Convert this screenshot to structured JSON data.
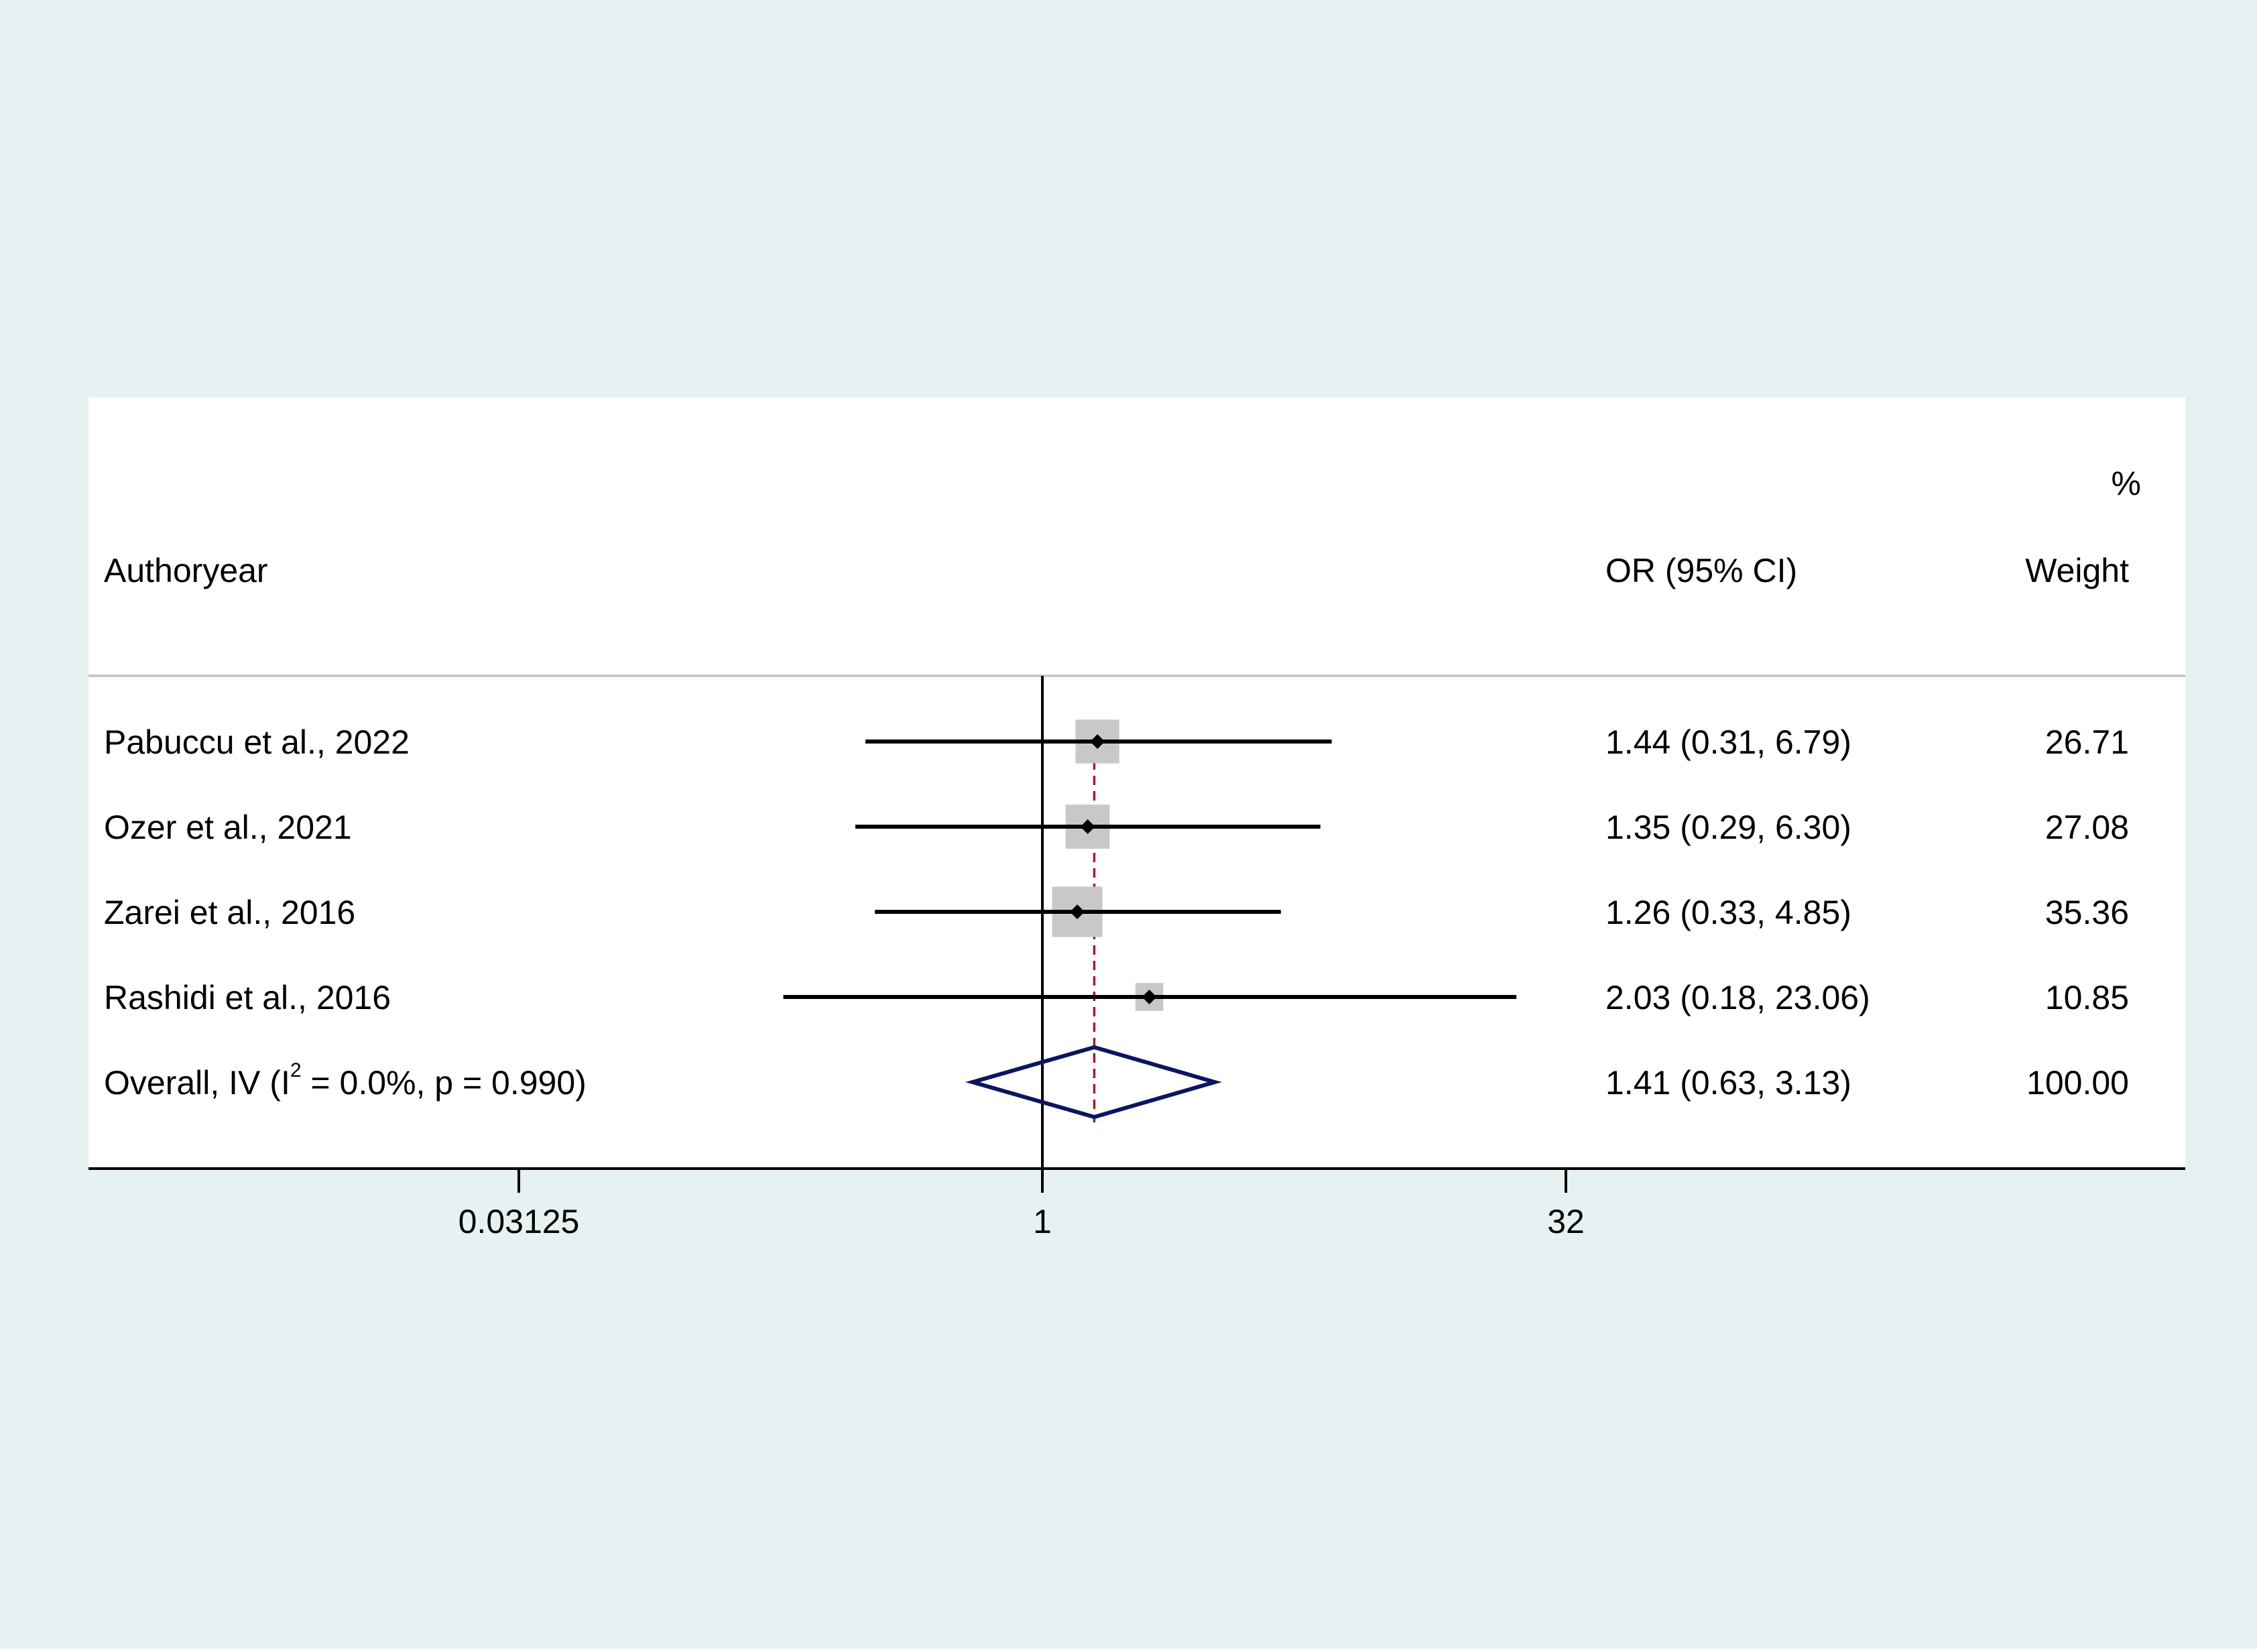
{
  "chart_data": {
    "type": "forest",
    "scale": "log2",
    "xticks": [
      {
        "value": 0.03125,
        "label": "0.03125"
      },
      {
        "value": 1,
        "label": "1"
      },
      {
        "value": 32,
        "label": "32"
      }
    ],
    "reference_line": 1,
    "overall_line": 1.41,
    "header": {
      "col_study": "Authoryear",
      "col_effect": "OR (95% CI)",
      "col_weight_top": "%",
      "col_weight": "Weight"
    },
    "studies": [
      {
        "label": "Pabuccu et al., 2022",
        "or": 1.44,
        "lo": 0.31,
        "hi": 6.79,
        "ci_text": "1.44 (0.31, 6.79)",
        "weight": 26.71,
        "weight_text": "26.71"
      },
      {
        "label": "Ozer et al., 2021",
        "or": 1.35,
        "lo": 0.29,
        "hi": 6.3,
        "ci_text": "1.35 (0.29, 6.30)",
        "weight": 27.08,
        "weight_text": "27.08"
      },
      {
        "label": "Zarei et al., 2016",
        "or": 1.26,
        "lo": 0.33,
        "hi": 4.85,
        "ci_text": "1.26 (0.33, 4.85)",
        "weight": 35.36,
        "weight_text": "35.36"
      },
      {
        "label": "Rashidi et al., 2016",
        "or": 2.03,
        "lo": 0.18,
        "hi": 23.06,
        "ci_text": "2.03 (0.18, 23.06)",
        "weight": 10.85,
        "weight_text": "10.85"
      }
    ],
    "overall": {
      "label_pre": "Overall, IV (I",
      "label_sup": "2",
      "label_post": " = 0.0%, p = 0.990)",
      "or": 1.41,
      "lo": 0.63,
      "hi": 3.13,
      "ci_text": "1.41 (0.63, 3.13)",
      "weight_text": "100.00"
    },
    "colors": {
      "outer_background": "#e6f1f1",
      "plot_background": "#ffffff",
      "ci_line": "#000000",
      "weight_box": "#c8c8c8",
      "point": "#000000",
      "diamond": "#0c1560",
      "overall_line": "#a01e28",
      "separator": "#c8c8c8"
    }
  }
}
